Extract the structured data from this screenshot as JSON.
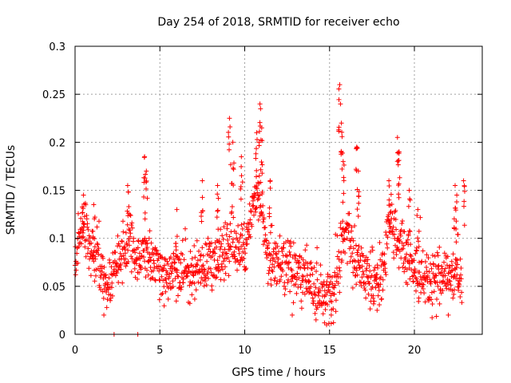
{
  "chart_data": {
    "type": "scatter",
    "title": "Day 254 of 2018, SRMTID for receiver echo",
    "xlabel": "GPS time / hours",
    "ylabel": "SRMTID / TECUs",
    "xlim": [
      0,
      24
    ],
    "ylim": [
      0,
      0.3
    ],
    "x_ticks": [
      0,
      5,
      10,
      15,
      20
    ],
    "x_tick_labels": [
      "0",
      "5",
      "10",
      "15",
      "20"
    ],
    "y_ticks": [
      0,
      0.05,
      0.1,
      0.15,
      0.2,
      0.25,
      0.3
    ],
    "y_tick_labels": [
      "0",
      "0.05",
      "0.1",
      "0.15",
      "0.2",
      "0.25",
      "0.3"
    ],
    "grid": true,
    "marker": "plus",
    "color": "#ff0000",
    "anchors": [
      [
        0,
        0.075
      ],
      [
        0.3,
        0.1
      ],
      [
        0.5,
        0.12
      ],
      [
        0.8,
        0.095
      ],
      [
        1.2,
        0.085
      ],
      [
        1.6,
        0.065
      ],
      [
        1.9,
        0.045
      ],
      [
        2.1,
        0.055
      ],
      [
        2.4,
        0.075
      ],
      [
        2.8,
        0.085
      ],
      [
        3.2,
        0.095
      ],
      [
        3.5,
        0.08
      ],
      [
        3.8,
        0.075
      ],
      [
        4.1,
        0.095
      ],
      [
        4.4,
        0.08
      ],
      [
        4.8,
        0.07
      ],
      [
        5.2,
        0.055
      ],
      [
        5.6,
        0.06
      ],
      [
        6.0,
        0.065
      ],
      [
        6.5,
        0.07
      ],
      [
        7.0,
        0.065
      ],
      [
        7.5,
        0.07
      ],
      [
        8.0,
        0.075
      ],
      [
        8.5,
        0.08
      ],
      [
        8.9,
        0.09
      ],
      [
        9.3,
        0.1
      ],
      [
        9.6,
        0.085
      ],
      [
        10.0,
        0.09
      ],
      [
        10.3,
        0.12
      ],
      [
        10.6,
        0.14
      ],
      [
        10.9,
        0.145
      ],
      [
        11.2,
        0.1
      ],
      [
        11.5,
        0.08
      ],
      [
        12.0,
        0.075
      ],
      [
        12.5,
        0.07
      ],
      [
        13.0,
        0.065
      ],
      [
        13.5,
        0.06
      ],
      [
        14.0,
        0.05
      ],
      [
        14.5,
        0.045
      ],
      [
        14.9,
        0.035
      ],
      [
        15.2,
        0.04
      ],
      [
        15.5,
        0.065
      ],
      [
        15.7,
        0.095
      ],
      [
        16.0,
        0.11
      ],
      [
        16.3,
        0.085
      ],
      [
        16.7,
        0.07
      ],
      [
        17.2,
        0.065
      ],
      [
        17.7,
        0.055
      ],
      [
        18.2,
        0.075
      ],
      [
        18.6,
        0.12
      ],
      [
        19.0,
        0.1
      ],
      [
        19.4,
        0.085
      ],
      [
        19.8,
        0.075
      ],
      [
        20.2,
        0.065
      ],
      [
        20.6,
        0.06
      ],
      [
        21.0,
        0.055
      ],
      [
        21.5,
        0.06
      ],
      [
        22.0,
        0.065
      ],
      [
        22.4,
        0.07
      ],
      [
        22.8,
        0.055
      ]
    ],
    "spikes": [
      [
        0.5,
        0.145
      ],
      [
        1.1,
        0.135
      ],
      [
        3.1,
        0.155
      ],
      [
        4.1,
        0.185
      ],
      [
        4.2,
        0.17
      ],
      [
        6.0,
        0.13
      ],
      [
        7.5,
        0.16
      ],
      [
        8.4,
        0.155
      ],
      [
        9.1,
        0.225
      ],
      [
        9.3,
        0.2
      ],
      [
        9.8,
        0.185
      ],
      [
        10.7,
        0.21
      ],
      [
        10.9,
        0.24
      ],
      [
        11.0,
        0.215
      ],
      [
        11.5,
        0.16
      ],
      [
        15.6,
        0.26
      ],
      [
        15.7,
        0.22
      ],
      [
        15.8,
        0.18
      ],
      [
        16.6,
        0.195
      ],
      [
        16.7,
        0.17
      ],
      [
        18.5,
        0.16
      ],
      [
        19.0,
        0.205
      ],
      [
        19.1,
        0.19
      ],
      [
        19.7,
        0.15
      ],
      [
        20.2,
        0.13
      ],
      [
        22.4,
        0.155
      ],
      [
        22.5,
        0.145
      ],
      [
        22.9,
        0.16
      ]
    ],
    "low_points": [
      [
        1.7,
        0.02
      ],
      [
        2.3,
        0.0
      ],
      [
        3.7,
        0.0
      ],
      [
        12.8,
        0.02
      ],
      [
        14.2,
        0.015
      ],
      [
        14.7,
        0.012
      ],
      [
        15.1,
        0.02
      ],
      [
        22.0,
        0.02
      ],
      [
        17.8,
        0.025
      ]
    ],
    "time_step_hours": 0.017,
    "noise_amplitude": 0.02,
    "random_seed": 254
  }
}
